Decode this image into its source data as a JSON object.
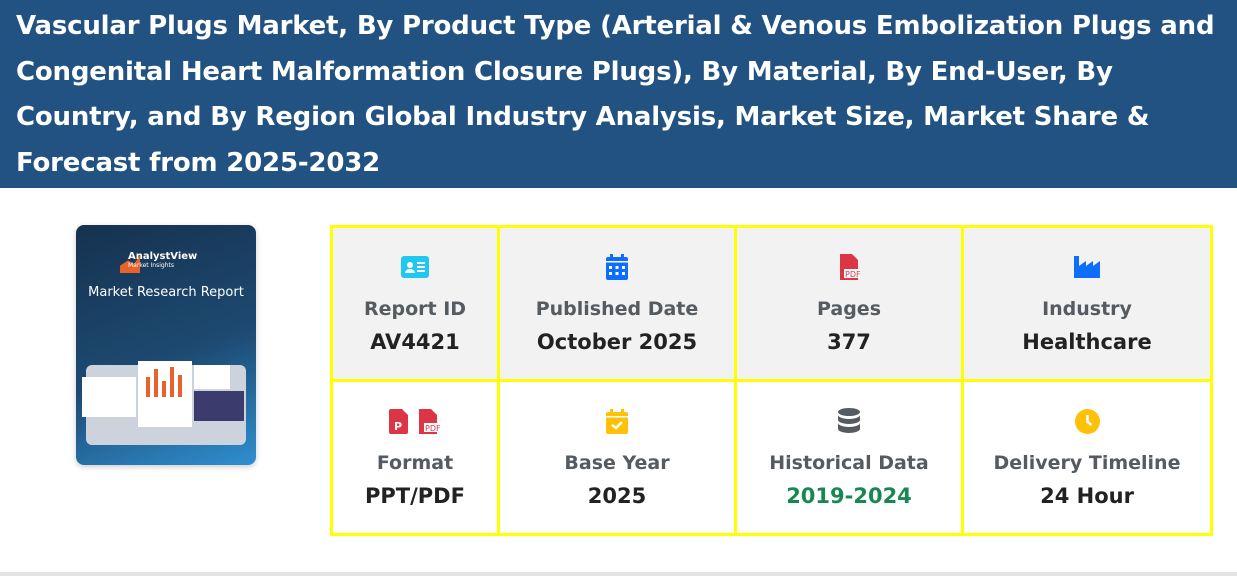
{
  "header": {
    "title": "Vascular Plugs Market, By Product Type (Arterial & Venous Embolization Plugs and Congenital Heart Malformation Closure Plugs), By Material, By End-User, By Country, and By Region Global Industry Analysis, Market Size, Market Share & Forecast from 2025-2032"
  },
  "cover": {
    "brand": "AnalystView",
    "brand_sub": "Market Insights",
    "title": "Market Research Report"
  },
  "details": [
    {
      "label": "Report ID",
      "value": "AV4421",
      "icon": "id-card-icon",
      "color": "#1ec8f0"
    },
    {
      "label": "Published Date",
      "value": "October 2025",
      "icon": "calendar-icon",
      "color": "#0d6efd"
    },
    {
      "label": "Pages",
      "value": "377",
      "icon": "file-pdf-icon",
      "color": "#dc3545"
    },
    {
      "label": "Industry",
      "value": "Healthcare",
      "icon": "industry-icon",
      "color": "#0d6efd"
    },
    {
      "label": "Format",
      "value": "PPT/PDF",
      "icon": "file-ppt-pdf-icon",
      "color": "#dc3545"
    },
    {
      "label": "Base Year",
      "value": "2025",
      "icon": "calendar-check-icon",
      "color": "#ffc107"
    },
    {
      "label": "Historical Data",
      "value": "2019-2024",
      "icon": "database-icon",
      "color": "#198754"
    },
    {
      "label": "Delivery Timeline",
      "value": "24 Hour",
      "icon": "clock-icon",
      "color": "#ffc107"
    }
  ]
}
